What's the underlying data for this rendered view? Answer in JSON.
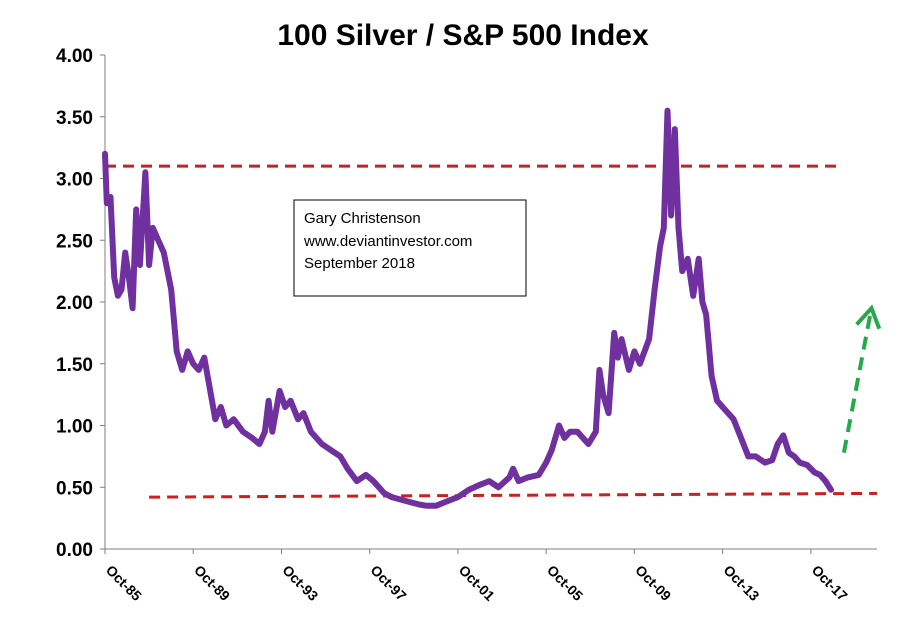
{
  "chart_data": {
    "type": "line",
    "title": "100 Silver / S&P 500 Index",
    "xlabel": "",
    "ylabel": "",
    "ylim": [
      0,
      4
    ],
    "xlim": [
      "1985-10",
      "2020-10"
    ],
    "y_ticks": [
      "0.00",
      "0.50",
      "1.00",
      "1.50",
      "2.00",
      "2.50",
      "3.00",
      "3.50",
      "4.00"
    ],
    "x_ticks": [
      "Oct-85",
      "Oct-89",
      "Oct-93",
      "Oct-97",
      "Oct-01",
      "Oct-05",
      "Oct-09",
      "Oct-13",
      "Oct-17"
    ],
    "x_tick_dates": [
      "1985-10",
      "1989-10",
      "1993-10",
      "1997-10",
      "2001-10",
      "2005-10",
      "2009-10",
      "2013-10",
      "2017-10"
    ],
    "grid": false,
    "series": [
      {
        "color": "#7030a0",
        "points": [
          [
            "1985-10",
            3.2
          ],
          [
            "1985-11",
            2.8
          ],
          [
            "1986-01",
            2.85
          ],
          [
            "1986-03",
            2.2
          ],
          [
            "1986-05",
            2.05
          ],
          [
            "1986-07",
            2.1
          ],
          [
            "1986-09",
            2.4
          ],
          [
            "1986-11",
            2.2
          ],
          [
            "1987-01",
            1.95
          ],
          [
            "1987-03",
            2.75
          ],
          [
            "1987-05",
            2.3
          ],
          [
            "1987-08",
            3.05
          ],
          [
            "1987-10",
            2.3
          ],
          [
            "1987-12",
            2.6
          ],
          [
            "1988-03",
            2.5
          ],
          [
            "1988-06",
            2.4
          ],
          [
            "1988-10",
            2.1
          ],
          [
            "1989-01",
            1.6
          ],
          [
            "1989-04",
            1.45
          ],
          [
            "1989-07",
            1.6
          ],
          [
            "1989-10",
            1.5
          ],
          [
            "1990-01",
            1.45
          ],
          [
            "1990-04",
            1.55
          ],
          [
            "1990-07",
            1.3
          ],
          [
            "1990-10",
            1.05
          ],
          [
            "1991-01",
            1.15
          ],
          [
            "1991-04",
            1.0
          ],
          [
            "1991-08",
            1.05
          ],
          [
            "1992-01",
            0.95
          ],
          [
            "1992-06",
            0.9
          ],
          [
            "1992-10",
            0.85
          ],
          [
            "1993-01",
            0.95
          ],
          [
            "1993-03",
            1.2
          ],
          [
            "1993-05",
            0.95
          ],
          [
            "1993-09",
            1.28
          ],
          [
            "1993-12",
            1.15
          ],
          [
            "1994-03",
            1.2
          ],
          [
            "1994-07",
            1.05
          ],
          [
            "1994-10",
            1.1
          ],
          [
            "1995-02",
            0.95
          ],
          [
            "1995-08",
            0.85
          ],
          [
            "1996-01",
            0.8
          ],
          [
            "1996-06",
            0.75
          ],
          [
            "1996-10",
            0.65
          ],
          [
            "1997-03",
            0.55
          ],
          [
            "1997-08",
            0.6
          ],
          [
            "1997-12",
            0.55
          ],
          [
            "1998-03",
            0.5
          ],
          [
            "1998-06",
            0.45
          ],
          [
            "1998-10",
            0.42
          ],
          [
            "1999-03",
            0.4
          ],
          [
            "1999-08",
            0.38
          ],
          [
            "2000-01",
            0.36
          ],
          [
            "2000-05",
            0.35
          ],
          [
            "2000-10",
            0.35
          ],
          [
            "2001-03",
            0.38
          ],
          [
            "2001-10",
            0.42
          ],
          [
            "2002-04",
            0.48
          ],
          [
            "2002-10",
            0.52
          ],
          [
            "2003-03",
            0.55
          ],
          [
            "2003-08",
            0.5
          ],
          [
            "2004-02",
            0.58
          ],
          [
            "2004-04",
            0.65
          ],
          [
            "2004-07",
            0.55
          ],
          [
            "2004-12",
            0.58
          ],
          [
            "2005-06",
            0.6
          ],
          [
            "2005-10",
            0.7
          ],
          [
            "2006-01",
            0.8
          ],
          [
            "2006-05",
            1.0
          ],
          [
            "2006-08",
            0.9
          ],
          [
            "2006-11",
            0.95
          ],
          [
            "2007-03",
            0.95
          ],
          [
            "2007-06",
            0.9
          ],
          [
            "2007-09",
            0.85
          ],
          [
            "2008-01",
            0.95
          ],
          [
            "2008-03",
            1.45
          ],
          [
            "2008-05",
            1.25
          ],
          [
            "2008-08",
            1.1
          ],
          [
            "2008-11",
            1.75
          ],
          [
            "2009-01",
            1.55
          ],
          [
            "2009-03",
            1.7
          ],
          [
            "2009-07",
            1.45
          ],
          [
            "2009-10",
            1.6
          ],
          [
            "2010-01",
            1.5
          ],
          [
            "2010-06",
            1.7
          ],
          [
            "2010-09",
            2.1
          ],
          [
            "2010-12",
            2.45
          ],
          [
            "2011-02",
            2.6
          ],
          [
            "2011-04",
            3.55
          ],
          [
            "2011-06",
            2.7
          ],
          [
            "2011-08",
            3.4
          ],
          [
            "2011-10",
            2.6
          ],
          [
            "2011-12",
            2.25
          ],
          [
            "2012-03",
            2.35
          ],
          [
            "2012-06",
            2.05
          ],
          [
            "2012-09",
            2.35
          ],
          [
            "2012-11",
            2.0
          ],
          [
            "2013-01",
            1.9
          ],
          [
            "2013-04",
            1.4
          ],
          [
            "2013-07",
            1.2
          ],
          [
            "2013-10",
            1.15
          ],
          [
            "2014-01",
            1.1
          ],
          [
            "2014-04",
            1.05
          ],
          [
            "2014-08",
            0.9
          ],
          [
            "2014-12",
            0.75
          ],
          [
            "2015-04",
            0.75
          ],
          [
            "2015-09",
            0.7
          ],
          [
            "2016-01",
            0.72
          ],
          [
            "2016-04",
            0.85
          ],
          [
            "2016-07",
            0.92
          ],
          [
            "2016-10",
            0.78
          ],
          [
            "2017-01",
            0.75
          ],
          [
            "2017-04",
            0.7
          ],
          [
            "2017-08",
            0.68
          ],
          [
            "2017-12",
            0.62
          ],
          [
            "2018-03",
            0.6
          ],
          [
            "2018-06",
            0.55
          ],
          [
            "2018-09",
            0.48
          ]
        ]
      }
    ],
    "reference_lines": [
      {
        "color": "#cc1f1f",
        "style": "dashed",
        "from": [
          "1985-10",
          3.1
        ],
        "to": [
          "2019-03",
          3.1
        ]
      },
      {
        "color": "#cc1f1f",
        "style": "dashed",
        "from": [
          "1987-10",
          0.42
        ],
        "to": [
          "2020-10",
          0.45
        ]
      }
    ],
    "trend_arrow": {
      "color": "#27a84a",
      "style": "dashed",
      "from": [
        "2019-04",
        0.78
      ],
      "to": [
        "2020-07",
        1.95
      ]
    }
  },
  "annotation": {
    "lines": [
      "Gary Christenson",
      "www.deviantinvestor.com",
      "September  2018"
    ]
  }
}
